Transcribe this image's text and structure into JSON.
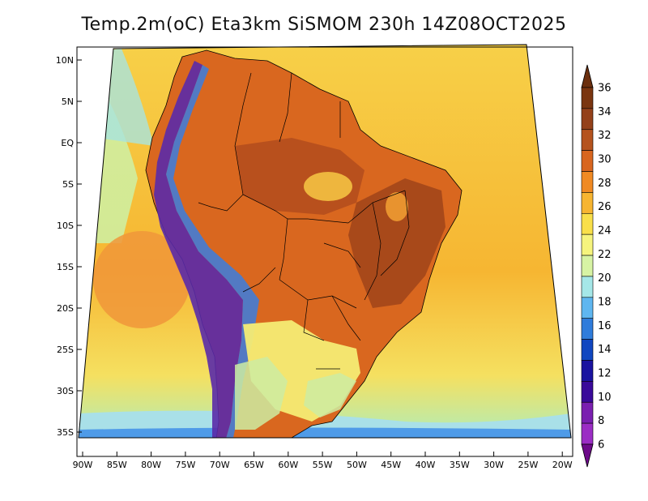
{
  "title": "Temp.2m(oC) Eta3km SiSMOM 230h 14Z08OCT2025",
  "lat_labels": [
    "10N",
    "5N",
    "EQ",
    "5S",
    "10S",
    "15S",
    "20S",
    "25S",
    "30S",
    "35S"
  ],
  "lon_labels": [
    "90W",
    "85W",
    "80W",
    "75W",
    "70W",
    "65W",
    "60W",
    "55W",
    "50W",
    "45W",
    "40W",
    "35W",
    "30W",
    "25W",
    "20W"
  ],
  "colorbar": {
    "labels": [
      "36",
      "34",
      "32",
      "30",
      "28",
      "26",
      "24",
      "22",
      "20",
      "18",
      "16",
      "14",
      "12",
      "10",
      "8",
      "6"
    ],
    "colors": [
      "#6b2f0e",
      "#7a3510",
      "#94411a",
      "#b5531e",
      "#d8661f",
      "#f08a23",
      "#f7b531",
      "#f9df4a",
      "#f6f47d",
      "#d7f3a4",
      "#a5e7e8",
      "#5fb6f0",
      "#2f7cdb",
      "#1046c0",
      "#1a13a0",
      "#3a0a9a",
      "#7a1fb0",
      "#9b2dc4",
      "#6d0a8a"
    ]
  },
  "icons": {
    "arrow_up": "triangle-up",
    "arrow_down": "triangle-down"
  }
}
